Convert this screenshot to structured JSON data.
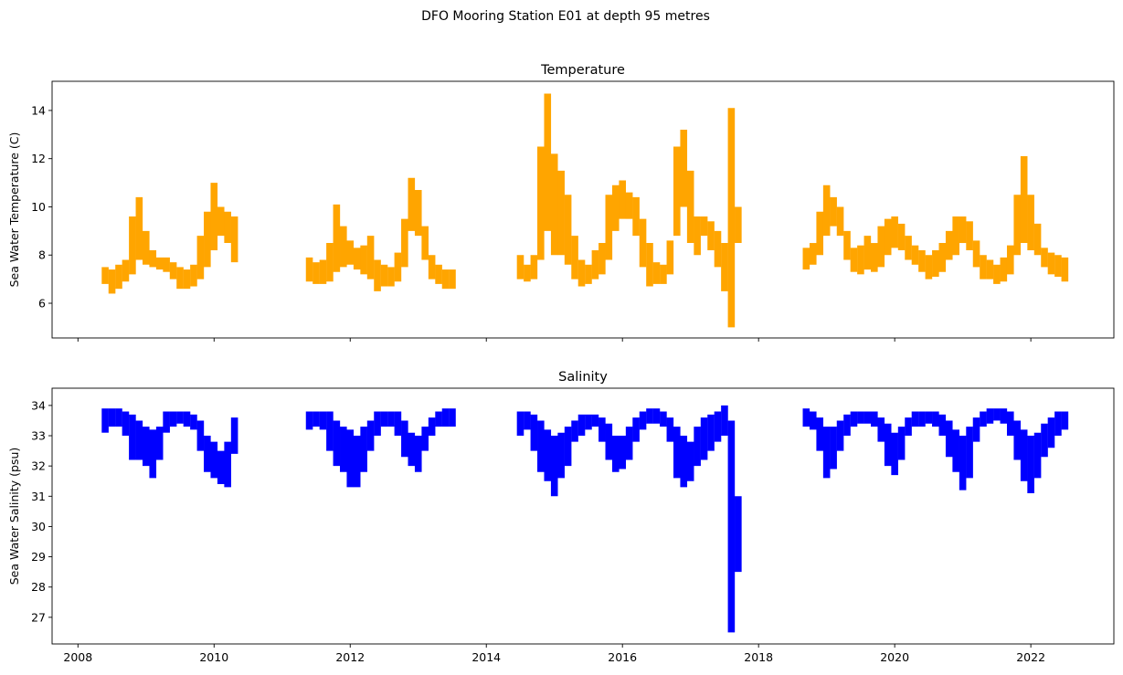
{
  "title": "DFO Mooring Station E01 at depth 95 metres",
  "chart_data": [
    {
      "type": "range",
      "title": "Temperature",
      "y_label": "Sea Water Temperature (C)",
      "color": "#ffa500",
      "xlim": [
        2007.62,
        2023.22
      ],
      "xticks": [
        2008,
        2010,
        2012,
        2014,
        2016,
        2018,
        2020,
        2022
      ],
      "show_xtick_labels": false,
      "ylim": [
        4.56,
        15.21
      ],
      "yticks": [
        6,
        8,
        10,
        12,
        14
      ],
      "x": [
        2008.4,
        2008.5,
        2008.6,
        2008.7,
        2008.8,
        2008.9,
        2009.0,
        2009.1,
        2009.2,
        2009.3,
        2009.4,
        2009.5,
        2009.6,
        2009.7,
        2009.8,
        2009.9,
        2010.0,
        2010.1,
        2010.2,
        2010.3,
        2011.4,
        2011.5,
        2011.6,
        2011.7,
        2011.8,
        2011.9,
        2012.0,
        2012.1,
        2012.2,
        2012.3,
        2012.4,
        2012.5,
        2012.6,
        2012.7,
        2012.8,
        2012.9,
        2013.0,
        2013.1,
        2013.2,
        2013.3,
        2013.4,
        2013.5,
        2014.5,
        2014.6,
        2014.7,
        2014.8,
        2014.9,
        2015.0,
        2015.1,
        2015.2,
        2015.3,
        2015.4,
        2015.5,
        2015.6,
        2015.7,
        2015.8,
        2015.9,
        2016.0,
        2016.1,
        2016.2,
        2016.3,
        2016.4,
        2016.5,
        2016.6,
        2016.7,
        2016.8,
        2016.9,
        2017.0,
        2017.1,
        2017.2,
        2017.3,
        2017.4,
        2017.5,
        2017.6,
        2017.7,
        2018.7,
        2018.8,
        2018.9,
        2019.0,
        2019.1,
        2019.2,
        2019.3,
        2019.4,
        2019.5,
        2019.6,
        2019.7,
        2019.8,
        2019.9,
        2020.0,
        2020.1,
        2020.2,
        2020.3,
        2020.4,
        2020.5,
        2020.6,
        2020.7,
        2020.8,
        2020.9,
        2021.0,
        2021.1,
        2021.2,
        2021.3,
        2021.4,
        2021.5,
        2021.6,
        2021.7,
        2021.8,
        2021.9,
        2022.0,
        2022.1,
        2022.2,
        2022.3,
        2022.4,
        2022.5
      ],
      "low": [
        6.8,
        6.4,
        6.6,
        6.9,
        7.2,
        7.8,
        7.6,
        7.5,
        7.4,
        7.3,
        7.0,
        6.6,
        6.6,
        6.7,
        7.0,
        7.5,
        8.2,
        8.8,
        8.5,
        7.7,
        6.9,
        6.8,
        6.8,
        6.9,
        7.3,
        7.5,
        7.6,
        7.4,
        7.2,
        7.0,
        6.5,
        6.7,
        6.7,
        6.9,
        7.5,
        9.0,
        8.8,
        7.8,
        7.0,
        6.8,
        6.6,
        6.6,
        7.0,
        6.9,
        7.0,
        7.8,
        9.0,
        8.0,
        8.0,
        7.6,
        7.0,
        6.7,
        6.8,
        7.0,
        7.2,
        7.8,
        9.0,
        9.5,
        9.5,
        8.8,
        7.5,
        6.7,
        6.8,
        6.8,
        7.2,
        8.8,
        10.0,
        8.5,
        8.0,
        8.8,
        8.2,
        7.5,
        6.5,
        5.0,
        8.5,
        7.4,
        7.6,
        8.0,
        8.8,
        9.2,
        8.8,
        7.8,
        7.3,
        7.2,
        7.4,
        7.3,
        7.5,
        8.0,
        8.3,
        8.2,
        7.8,
        7.6,
        7.3,
        7.0,
        7.1,
        7.3,
        7.8,
        8.0,
        8.5,
        8.2,
        7.5,
        7.0,
        7.0,
        6.8,
        6.9,
        7.2,
        8.0,
        8.5,
        8.2,
        8.0,
        7.5,
        7.2,
        7.1,
        6.9
      ],
      "high": [
        7.5,
        7.4,
        7.6,
        7.8,
        9.6,
        10.4,
        9.0,
        8.2,
        7.9,
        7.9,
        7.7,
        7.5,
        7.4,
        7.6,
        8.8,
        9.8,
        11.0,
        10.0,
        9.8,
        9.6,
        7.9,
        7.7,
        7.8,
        8.5,
        10.1,
        9.2,
        8.6,
        8.3,
        8.4,
        8.8,
        7.8,
        7.6,
        7.5,
        8.1,
        9.5,
        11.2,
        10.7,
        9.2,
        8.0,
        7.6,
        7.4,
        7.4,
        8.0,
        7.6,
        8.0,
        12.5,
        14.7,
        12.2,
        11.5,
        10.5,
        8.8,
        7.8,
        7.6,
        8.2,
        8.5,
        10.5,
        10.9,
        11.1,
        10.6,
        10.4,
        9.5,
        8.5,
        7.7,
        7.6,
        8.6,
        12.5,
        13.2,
        11.5,
        9.6,
        9.6,
        9.4,
        9.0,
        8.5,
        14.1,
        10.0,
        8.3,
        8.5,
        9.8,
        10.9,
        10.4,
        10.0,
        9.0,
        8.3,
        8.4,
        8.8,
        8.5,
        9.2,
        9.5,
        9.6,
        9.3,
        8.8,
        8.4,
        8.2,
        8.0,
        8.2,
        8.5,
        9.0,
        9.6,
        9.6,
        9.4,
        8.6,
        8.0,
        7.8,
        7.6,
        7.9,
        8.4,
        10.5,
        12.1,
        10.5,
        9.3,
        8.3,
        8.1,
        8.0,
        7.9
      ]
    },
    {
      "type": "range",
      "title": "Salinity",
      "y_label": "Sea Water Salinity (psu)",
      "color": "#0000ff",
      "xlim": [
        2007.62,
        2023.22
      ],
      "xticks": [
        2008,
        2010,
        2012,
        2014,
        2016,
        2018,
        2020,
        2022
      ],
      "show_xtick_labels": true,
      "ylim": [
        26.12,
        34.57
      ],
      "yticks": [
        27,
        28,
        29,
        30,
        31,
        32,
        33,
        34
      ],
      "x": [
        2008.4,
        2008.5,
        2008.6,
        2008.7,
        2008.8,
        2008.9,
        2009.0,
        2009.1,
        2009.2,
        2009.3,
        2009.4,
        2009.5,
        2009.6,
        2009.7,
        2009.8,
        2009.9,
        2010.0,
        2010.1,
        2010.2,
        2010.3,
        2011.4,
        2011.5,
        2011.6,
        2011.7,
        2011.8,
        2011.9,
        2012.0,
        2012.1,
        2012.2,
        2012.3,
        2012.4,
        2012.5,
        2012.6,
        2012.7,
        2012.8,
        2012.9,
        2013.0,
        2013.1,
        2013.2,
        2013.3,
        2013.4,
        2013.5,
        2014.5,
        2014.6,
        2014.7,
        2014.8,
        2014.9,
        2015.0,
        2015.1,
        2015.2,
        2015.3,
        2015.4,
        2015.5,
        2015.6,
        2015.7,
        2015.8,
        2015.9,
        2016.0,
        2016.1,
        2016.2,
        2016.3,
        2016.4,
        2016.5,
        2016.6,
        2016.7,
        2016.8,
        2016.9,
        2017.0,
        2017.1,
        2017.2,
        2017.3,
        2017.4,
        2017.5,
        2017.6,
        2017.7,
        2018.7,
        2018.8,
        2018.9,
        2019.0,
        2019.1,
        2019.2,
        2019.3,
        2019.4,
        2019.5,
        2019.6,
        2019.7,
        2019.8,
        2019.9,
        2020.0,
        2020.1,
        2020.2,
        2020.3,
        2020.4,
        2020.5,
        2020.6,
        2020.7,
        2020.8,
        2020.9,
        2021.0,
        2021.1,
        2021.2,
        2021.3,
        2021.4,
        2021.5,
        2021.6,
        2021.7,
        2021.8,
        2021.9,
        2022.0,
        2022.1,
        2022.2,
        2022.3,
        2022.4,
        2022.5
      ],
      "low": [
        33.1,
        33.3,
        33.3,
        33.0,
        32.2,
        32.2,
        32.0,
        31.6,
        32.2,
        33.1,
        33.3,
        33.4,
        33.3,
        33.2,
        32.5,
        31.8,
        31.6,
        31.4,
        31.3,
        32.4,
        33.2,
        33.3,
        33.2,
        32.5,
        32.0,
        31.8,
        31.3,
        31.3,
        31.8,
        32.5,
        33.0,
        33.3,
        33.3,
        33.0,
        32.3,
        32.0,
        31.8,
        32.5,
        33.0,
        33.3,
        33.3,
        33.3,
        33.0,
        33.2,
        32.5,
        31.8,
        31.5,
        31.0,
        31.6,
        32.0,
        32.8,
        33.0,
        33.2,
        33.3,
        32.8,
        32.2,
        31.8,
        31.9,
        32.2,
        32.8,
        33.2,
        33.4,
        33.4,
        33.3,
        32.8,
        31.6,
        31.3,
        31.5,
        32.0,
        32.2,
        32.5,
        32.8,
        33.0,
        26.5,
        28.5,
        33.3,
        33.2,
        32.5,
        31.6,
        31.9,
        32.5,
        33.0,
        33.3,
        33.4,
        33.4,
        33.3,
        32.8,
        32.0,
        31.7,
        32.2,
        33.0,
        33.3,
        33.3,
        33.4,
        33.3,
        33.0,
        32.3,
        31.8,
        31.2,
        31.6,
        32.8,
        33.3,
        33.4,
        33.5,
        33.4,
        33.0,
        32.2,
        31.5,
        31.1,
        31.6,
        32.3,
        32.6,
        33.0,
        33.2
      ],
      "high": [
        33.9,
        33.9,
        33.9,
        33.8,
        33.7,
        33.5,
        33.3,
        33.2,
        33.3,
        33.8,
        33.8,
        33.8,
        33.8,
        33.7,
        33.5,
        33.0,
        32.8,
        32.5,
        32.8,
        33.6,
        33.8,
        33.8,
        33.8,
        33.8,
        33.5,
        33.3,
        33.2,
        33.0,
        33.3,
        33.5,
        33.8,
        33.8,
        33.8,
        33.8,
        33.5,
        33.1,
        33.0,
        33.3,
        33.6,
        33.8,
        33.9,
        33.9,
        33.8,
        33.8,
        33.7,
        33.5,
        33.2,
        33.0,
        33.1,
        33.3,
        33.5,
        33.7,
        33.7,
        33.7,
        33.6,
        33.4,
        33.0,
        33.0,
        33.3,
        33.6,
        33.8,
        33.9,
        33.9,
        33.8,
        33.6,
        33.3,
        33.0,
        32.8,
        33.3,
        33.6,
        33.7,
        33.8,
        34.0,
        33.5,
        31.0,
        33.9,
        33.8,
        33.6,
        33.3,
        33.3,
        33.5,
        33.7,
        33.8,
        33.8,
        33.8,
        33.8,
        33.6,
        33.4,
        33.1,
        33.3,
        33.6,
        33.8,
        33.8,
        33.8,
        33.8,
        33.7,
        33.5,
        33.2,
        33.0,
        33.3,
        33.6,
        33.8,
        33.9,
        33.9,
        33.9,
        33.8,
        33.5,
        33.2,
        33.0,
        33.1,
        33.4,
        33.6,
        33.8,
        33.8
      ]
    }
  ]
}
